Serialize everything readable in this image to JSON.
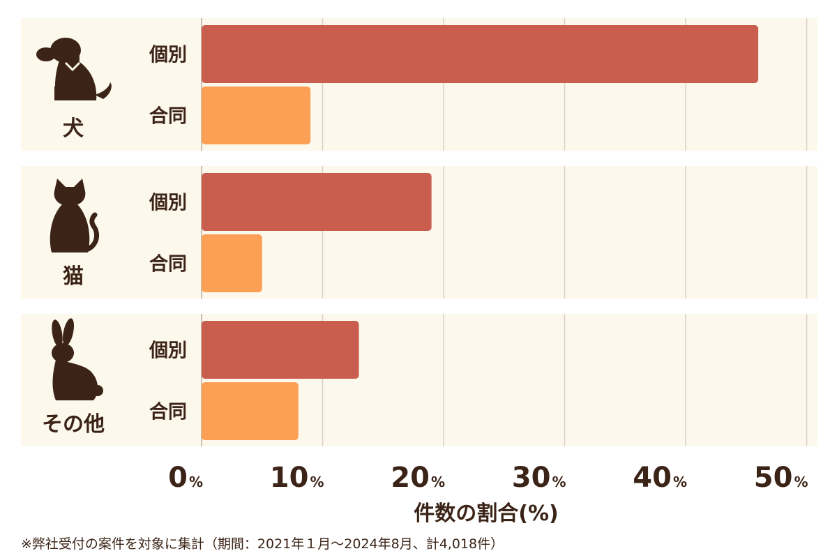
{
  "chart_data": {
    "type": "bar",
    "orientation": "horizontal",
    "groups": [
      {
        "name": "犬",
        "icon": "dog-icon",
        "bars": [
          {
            "label": "個別",
            "value": 46.0
          },
          {
            "label": "合同",
            "value": 9.0
          }
        ]
      },
      {
        "name": "猫",
        "icon": "cat-icon",
        "bars": [
          {
            "label": "個別",
            "value": 19.0
          },
          {
            "label": "合同",
            "value": 5.0
          }
        ]
      },
      {
        "name": "その他",
        "icon": "rabbit-icon",
        "bars": [
          {
            "label": "個別",
            "value": 13.0
          },
          {
            "label": "合同",
            "value": 8.0
          }
        ]
      }
    ],
    "series": [
      {
        "name": "個別",
        "color": "#c95e4e"
      },
      {
        "name": "合同",
        "color": "#fba055"
      }
    ],
    "xlim": [
      0,
      50
    ],
    "ticks": [
      0,
      10,
      20,
      30,
      40,
      50
    ],
    "tick_unit": "%",
    "xlabel": "件数の割合(%)",
    "grid": true,
    "footnote": "※弊社受付の案件を対象に集計（期間：2021年１月〜2024年8月、計4,018件）",
    "colors": {
      "panel": "#fdf8ec",
      "grid": "#d8d2c6",
      "text": "#3b2417",
      "icon": "#3b2417"
    }
  }
}
